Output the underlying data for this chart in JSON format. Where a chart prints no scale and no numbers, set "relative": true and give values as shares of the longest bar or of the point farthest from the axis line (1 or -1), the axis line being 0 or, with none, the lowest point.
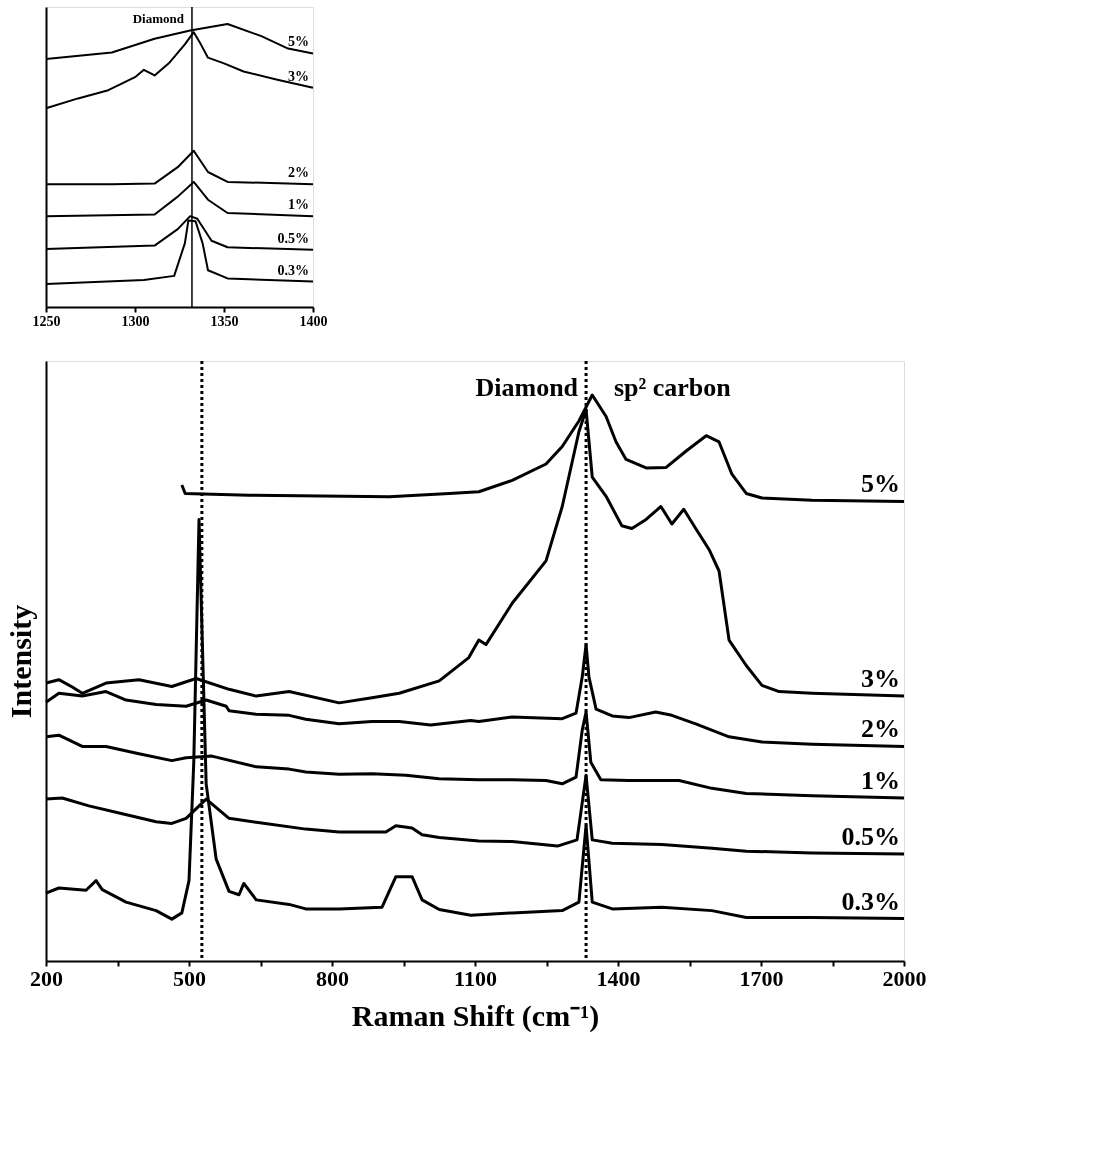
{
  "chart_data": [
    {
      "type": "line",
      "relative": true,
      "xlim": [
        1250,
        1400
      ],
      "xticks": [
        1250,
        1300,
        1350,
        1400
      ],
      "line_style": "solid",
      "legend": false,
      "grid": false,
      "ref_lines": [
        {
          "axis": "x",
          "value": 1332,
          "label": "Diamond",
          "line_style": "solid",
          "color": "#000000"
        }
      ],
      "series": [
        {
          "name": "5%",
          "color": "#000000",
          "x": [
            1250,
            1287,
            1311,
            1331,
            1352,
            1371,
            1386,
            1400
          ],
          "values": [
            0.876,
            0.899,
            0.948,
            0.977,
            1.0,
            0.957,
            0.913,
            0.896
          ]
        },
        {
          "name": "3%",
          "color": "#000000",
          "x": [
            1250,
            1268,
            1285,
            1300,
            1305,
            1311,
            1319,
            1328,
            1333,
            1337,
            1341,
            1350,
            1361,
            1380,
            1400
          ],
          "values": [
            0.702,
            0.737,
            0.766,
            0.812,
            0.838,
            0.818,
            0.861,
            0.928,
            0.971,
            0.928,
            0.881,
            0.861,
            0.832,
            0.803,
            0.775
          ]
        },
        {
          "name": "2%",
          "color": "#000000",
          "x": [
            1250,
            1287,
            1311,
            1324,
            1333,
            1341,
            1352,
            1400
          ],
          "values": [
            0.434,
            0.434,
            0.436,
            0.494,
            0.552,
            0.477,
            0.442,
            0.434
          ]
        },
        {
          "name": "1%",
          "color": "#000000",
          "x": [
            1250,
            1311,
            1324,
            1333,
            1341,
            1352,
            1400
          ],
          "values": [
            0.321,
            0.327,
            0.39,
            0.442,
            0.379,
            0.332,
            0.321
          ]
        },
        {
          "name": "0.5%",
          "color": "#000000",
          "x": [
            1250,
            1311,
            1324,
            1331,
            1335,
            1343,
            1352,
            1400
          ],
          "values": [
            0.205,
            0.217,
            0.275,
            0.321,
            0.312,
            0.234,
            0.211,
            0.202
          ]
        },
        {
          "name": "0.3%",
          "color": "#000000",
          "x": [
            1250,
            1305,
            1322,
            1328,
            1330,
            1334,
            1338,
            1341,
            1352,
            1400
          ],
          "values": [
            0.081,
            0.095,
            0.11,
            0.225,
            0.306,
            0.303,
            0.225,
            0.13,
            0.101,
            0.09
          ]
        }
      ]
    },
    {
      "type": "line",
      "relative": true,
      "xlim": [
        200,
        2000
      ],
      "xlabel": "Raman Shift (cm⁻¹)",
      "ylabel": "Intensity",
      "line_style": "solid",
      "legend": false,
      "grid": false,
      "xticks": [
        200,
        {
          "value": 350,
          "label": null
        },
        500,
        {
          "value": 650,
          "label": null
        },
        800,
        {
          "value": 950,
          "label": null
        },
        1100,
        {
          "value": 1250,
          "label": null
        },
        1400,
        {
          "value": 1550,
          "label": null
        },
        1700,
        {
          "value": 1850,
          "label": null
        },
        2000
      ],
      "ref_lines": [
        {
          "axis": "x",
          "value": 527,
          "line_style": "dotted",
          "color": "#000000"
        },
        {
          "axis": "x",
          "value": 1333,
          "label": "Diamond",
          "line_style": "dotted",
          "color": "#000000"
        }
      ],
      "annotations": [
        "sp² carbon"
      ],
      "series": [
        {
          "name": "5%",
          "color": "#000000",
          "x": [
            485,
            492,
            626,
            920,
            1046,
            1108,
            1178,
            1249,
            1283,
            1318,
            1346,
            1375,
            1396,
            1417,
            1459,
            1501,
            1543,
            1585,
            1612,
            1639,
            1669,
            1702,
            1807,
            2000
          ],
          "values": [
            0.841,
            0.826,
            0.823,
            0.82,
            0.826,
            0.829,
            0.849,
            0.878,
            0.909,
            0.954,
            1.0,
            0.962,
            0.917,
            0.886,
            0.871,
            0.872,
            0.901,
            0.928,
            0.917,
            0.86,
            0.826,
            0.818,
            0.814,
            0.812
          ]
        },
        {
          "name": "3%",
          "color": "#000000",
          "x": [
            200,
            227,
            255,
            276,
            326,
            395,
            464,
            515,
            584,
            641,
            710,
            815,
            884,
            941,
            1025,
            1087,
            1108,
            1123,
            1178,
            1249,
            1283,
            1318,
            1333,
            1346,
            1375,
            1408,
            1429,
            1459,
            1490,
            1513,
            1538,
            1563,
            1591,
            1612,
            1633,
            1669,
            1702,
            1738,
            1807,
            2000
          ],
          "values": [
            0.491,
            0.497,
            0.484,
            0.473,
            0.491,
            0.497,
            0.485,
            0.499,
            0.48,
            0.468,
            0.476,
            0.456,
            0.465,
            0.473,
            0.495,
            0.536,
            0.567,
            0.559,
            0.632,
            0.707,
            0.803,
            0.935,
            0.974,
            0.855,
            0.821,
            0.769,
            0.764,
            0.78,
            0.803,
            0.772,
            0.798,
            0.764,
            0.727,
            0.689,
            0.567,
            0.522,
            0.487,
            0.476,
            0.473,
            0.468
          ]
        },
        {
          "name": "2%",
          "color": "#000000",
          "x": [
            200,
            227,
            276,
            326,
            368,
            431,
            494,
            536,
            578,
            584,
            641,
            710,
            745,
            815,
            884,
            941,
            1007,
            1091,
            1108,
            1178,
            1283,
            1312,
            1325,
            1333,
            1339,
            1354,
            1388,
            1423,
            1479,
            1513,
            1563,
            1633,
            1702,
            1807,
            2000
          ],
          "values": [
            0.457,
            0.473,
            0.468,
            0.476,
            0.461,
            0.453,
            0.45,
            0.461,
            0.45,
            0.442,
            0.436,
            0.434,
            0.427,
            0.419,
            0.423,
            0.423,
            0.417,
            0.425,
            0.423,
            0.431,
            0.428,
            0.438,
            0.502,
            0.559,
            0.502,
            0.445,
            0.433,
            0.43,
            0.44,
            0.434,
            0.419,
            0.396,
            0.387,
            0.383,
            0.379
          ]
        },
        {
          "name": "1%",
          "color": "#000000",
          "x": [
            200,
            227,
            276,
            326,
            395,
            464,
            494,
            548,
            641,
            710,
            745,
            815,
            884,
            955,
            1025,
            1108,
            1178,
            1249,
            1283,
            1312,
            1325,
            1333,
            1343,
            1364,
            1423,
            1528,
            1597,
            1669,
            1807,
            2000
          ],
          "values": [
            0.396,
            0.399,
            0.379,
            0.379,
            0.366,
            0.354,
            0.359,
            0.362,
            0.343,
            0.339,
            0.334,
            0.33,
            0.331,
            0.328,
            0.322,
            0.32,
            0.32,
            0.319,
            0.313,
            0.325,
            0.408,
            0.44,
            0.351,
            0.32,
            0.319,
            0.319,
            0.305,
            0.296,
            0.292,
            0.288
          ]
        },
        {
          "name": "0.5%",
          "color": "#000000",
          "x": [
            200,
            234,
            290,
            360,
            431,
            464,
            494,
            536,
            584,
            641,
            745,
            815,
            913,
            934,
            968,
            989,
            1025,
            1108,
            1178,
            1273,
            1314,
            1333,
            1346,
            1388,
            1492,
            1597,
            1669,
            1807,
            2000
          ],
          "values": [
            0.286,
            0.288,
            0.274,
            0.26,
            0.246,
            0.243,
            0.252,
            0.286,
            0.252,
            0.245,
            0.233,
            0.228,
            0.228,
            0.239,
            0.235,
            0.223,
            0.218,
            0.212,
            0.211,
            0.203,
            0.214,
            0.328,
            0.214,
            0.208,
            0.206,
            0.199,
            0.194,
            0.191,
            0.189
          ]
        },
        {
          "name": "0.3%",
          "color": "#000000",
          "x": [
            200,
            227,
            284,
            305,
            318,
            368,
            431,
            464,
            485,
            500,
            510,
            521,
            536,
            557,
            584,
            605,
            615,
            641,
            710,
            745,
            815,
            905,
            934,
            968,
            989,
            1025,
            1091,
            1178,
            1283,
            1318,
            1333,
            1346,
            1388,
            1492,
            1597,
            1669,
            1807,
            2000
          ],
          "values": [
            0.12,
            0.129,
            0.125,
            0.142,
            0.126,
            0.104,
            0.089,
            0.074,
            0.085,
            0.142,
            0.351,
            0.78,
            0.313,
            0.18,
            0.123,
            0.117,
            0.137,
            0.108,
            0.1,
            0.092,
            0.092,
            0.095,
            0.149,
            0.149,
            0.108,
            0.091,
            0.081,
            0.085,
            0.089,
            0.104,
            0.239,
            0.104,
            0.092,
            0.095,
            0.089,
            0.077,
            0.077,
            0.075
          ]
        }
      ]
    }
  ]
}
